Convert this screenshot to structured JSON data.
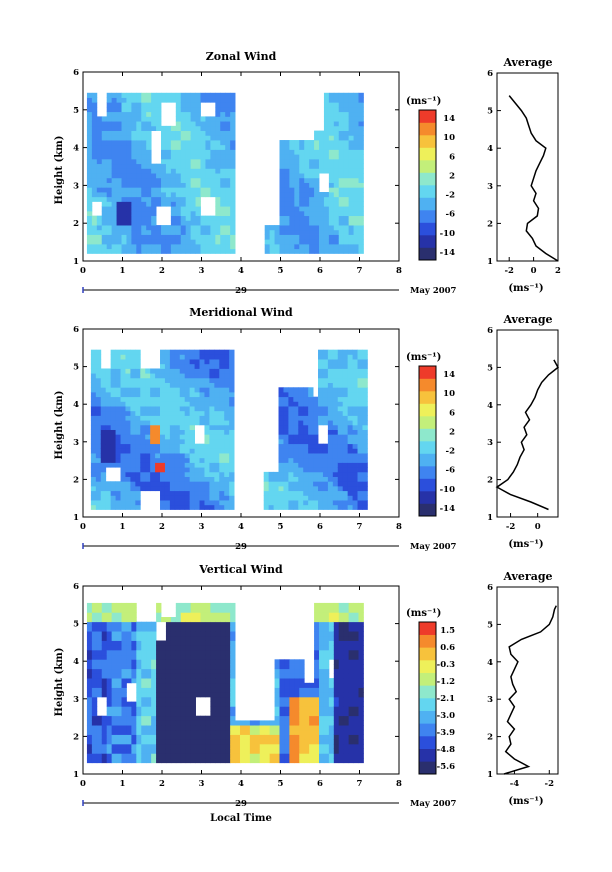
{
  "chart_data": [
    {
      "type": "heatmap",
      "title": "Zonal Wind",
      "ylabel": "Height (km)",
      "xlim": [
        0,
        8
      ],
      "ylim": [
        1,
        6
      ],
      "x_ticks": [
        "0",
        "1",
        "2",
        "3",
        "4",
        "5",
        "6",
        "7",
        "8"
      ],
      "y_ticks": [
        "1",
        "2",
        "3",
        "4",
        "5",
        "6"
      ],
      "date_label": "29",
      "date_right": "May 2007",
      "colorbar": {
        "unit": "(ms⁻¹)",
        "ticks": [
          "14",
          "10",
          "6",
          "2",
          "-2",
          "-6",
          "-10",
          "-14"
        ],
        "range": [
          -14,
          14
        ]
      },
      "data_extent": [
        0.1,
        7.1,
        1.2,
        5.4
      ],
      "avg": {
        "title": "Average",
        "xlabel": "(ms⁻¹)",
        "xlim": [
          -3,
          2
        ],
        "x_ticks": [
          "-2",
          "0",
          "2"
        ],
        "heights": [
          1.0,
          1.2,
          1.4,
          1.6,
          1.8,
          2.0,
          2.2,
          2.4,
          2.6,
          2.8,
          3.0,
          3.2,
          3.4,
          3.6,
          3.8,
          4.0,
          4.2,
          4.4,
          4.6,
          4.8,
          5.0,
          5.2,
          5.4
        ],
        "values": [
          2.0,
          1.0,
          0.2,
          -0.1,
          -0.6,
          -0.5,
          0.3,
          0.4,
          0.0,
          0.2,
          -0.2,
          0.0,
          0.2,
          0.5,
          0.8,
          1.0,
          0.2,
          -0.2,
          -0.4,
          -0.6,
          -1.0,
          -1.5,
          -2.0
        ]
      }
    },
    {
      "type": "heatmap",
      "title": "Meridional Wind",
      "ylabel": "Height (km)",
      "xlim": [
        0,
        8
      ],
      "ylim": [
        1,
        6
      ],
      "x_ticks": [
        "0",
        "1",
        "2",
        "3",
        "4",
        "5",
        "6",
        "7",
        "8"
      ],
      "y_ticks": [
        "1",
        "2",
        "3",
        "4",
        "5",
        "6"
      ],
      "date_label": "29",
      "date_right": "May 2007",
      "colorbar": {
        "unit": "(ms⁻¹)",
        "ticks": [
          "14",
          "10",
          "6",
          "2",
          "-2",
          "-6",
          "-10",
          "-14"
        ],
        "range": [
          -14,
          14
        ]
      },
      "data_extent": [
        0.2,
        7.2,
        1.2,
        5.4
      ],
      "avg": {
        "title": "Average",
        "xlabel": "(ms⁻¹)",
        "xlim": [
          -3,
          1.5
        ],
        "x_ticks": [
          "-2",
          "0"
        ],
        "heights": [
          1.2,
          1.4,
          1.6,
          1.8,
          2.0,
          2.2,
          2.4,
          2.6,
          2.8,
          3.0,
          3.2,
          3.4,
          3.6,
          3.8,
          4.0,
          4.2,
          4.4,
          4.6,
          4.8,
          5.0,
          5.2
        ],
        "values": [
          0.8,
          -0.5,
          -2.0,
          -3.0,
          -2.2,
          -1.8,
          -1.5,
          -1.3,
          -1.0,
          -1.2,
          -0.8,
          -1.0,
          -0.6,
          -0.9,
          -0.5,
          -0.2,
          0.0,
          0.3,
          0.8,
          1.5,
          1.2
        ]
      }
    },
    {
      "type": "heatmap",
      "title": "Vertical Wind",
      "ylabel": "Height (km)",
      "xlabel": "Local Time",
      "xlim": [
        0,
        8
      ],
      "ylim": [
        1,
        6
      ],
      "x_ticks": [
        "0",
        "1",
        "2",
        "3",
        "4",
        "5",
        "6",
        "7",
        "8"
      ],
      "y_ticks": [
        "1",
        "2",
        "3",
        "4",
        "5",
        "6"
      ],
      "date_label": "29",
      "date_right": "May 2007",
      "colorbar": {
        "unit": "(ms⁻¹)",
        "ticks": [
          "1.5",
          "0.6",
          "-0.3",
          "-1.2",
          "-2.1",
          "-3.0",
          "-3.9",
          "-4.8",
          "-5.6"
        ],
        "range": [
          -5.6,
          1.5
        ]
      },
      "data_extent": [
        0.1,
        7.1,
        1.3,
        5.5
      ],
      "avg": {
        "title": "Average",
        "xlabel": "(ms⁻¹)",
        "xlim": [
          -5,
          -1.5
        ],
        "x_ticks": [
          "-4",
          "-2"
        ],
        "heights": [
          1.0,
          1.2,
          1.4,
          1.6,
          1.8,
          2.0,
          2.2,
          2.4,
          2.6,
          2.8,
          3.0,
          3.2,
          3.4,
          3.6,
          3.8,
          4.0,
          4.2,
          4.4,
          4.6,
          4.8,
          5.0,
          5.2,
          5.4,
          5.5
        ],
        "values": [
          -4.6,
          -3.2,
          -4.0,
          -4.5,
          -4.2,
          -4.3,
          -4.0,
          -4.4,
          -4.2,
          -4.0,
          -4.3,
          -3.9,
          -4.1,
          -4.2,
          -4.0,
          -3.8,
          -4.2,
          -4.3,
          -3.6,
          -2.5,
          -2.0,
          -1.8,
          -1.7,
          -1.6
        ]
      }
    }
  ],
  "colors": {
    "palette": [
      "#2a2f6e",
      "#2632a8",
      "#2b4fdc",
      "#3f84f0",
      "#4fb1f2",
      "#63d6f0",
      "#8ee8cc",
      "#c3ef7a",
      "#eef05a",
      "#f7c23c",
      "#f58a2c",
      "#ee3b2a"
    ],
    "blank": "#ffffff"
  }
}
